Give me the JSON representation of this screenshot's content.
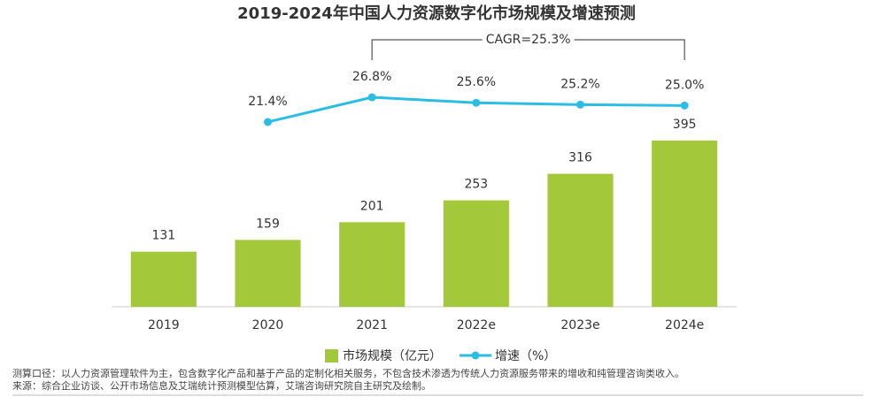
{
  "chart_data": {
    "type": "bar",
    "title": "2019-2024年中国人力资源数字化市场规模及增速预测",
    "categories": [
      "2019",
      "2020",
      "2021",
      "2022e",
      "2023e",
      "2024e"
    ],
    "series": [
      {
        "name": "市场规模（亿元）",
        "type": "bar",
        "color": "#a3c93a",
        "values": [
          131,
          159,
          201,
          253,
          316,
          395
        ]
      },
      {
        "name": "增速（%）",
        "type": "line",
        "axis": "y2",
        "color": "#2bbde3",
        "values": [
          null,
          21.4,
          26.8,
          25.6,
          25.2,
          25.0
        ],
        "value_labels": [
          null,
          "21.4%",
          "26.8%",
          "25.6%",
          "25.2%",
          "25.0%"
        ]
      }
    ],
    "ylim": [
      0,
      500
    ],
    "y2lim": [
      -19,
      27
    ],
    "annotation": "CAGR=25.3%",
    "legend": "bottom",
    "notes": [
      "测算口径：以人力资源管理软件为主，包含数字化产品和基于产品的定制化相关服务，不包含技术渗透为传统人力资源服务带来的增收和纯管理咨询类收入。",
      "来源：综合企业访谈、公开市场信息及艾瑞统计预测模型估算，艾瑞咨询研究院自主研究及绘制。"
    ]
  }
}
